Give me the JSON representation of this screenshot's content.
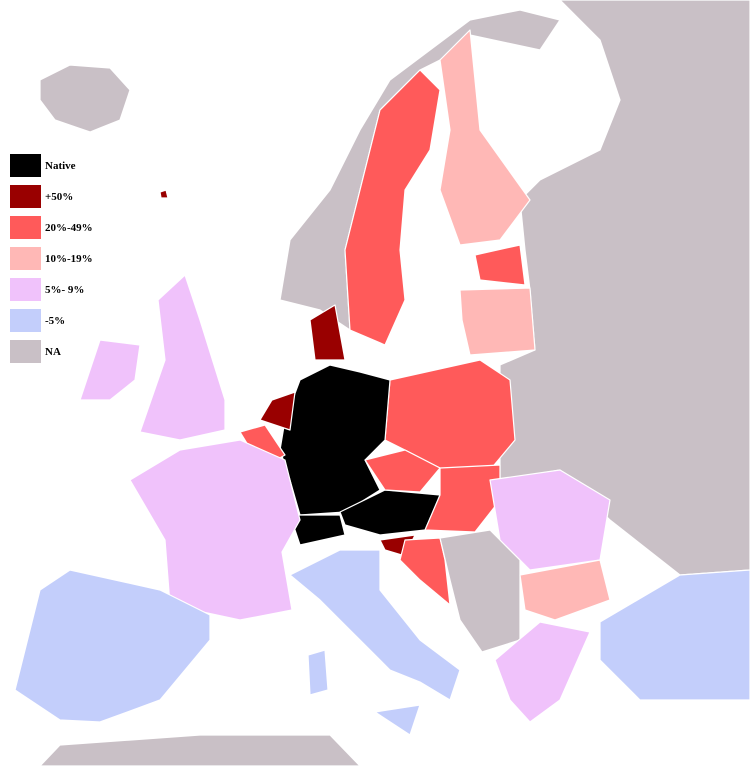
{
  "legend": {
    "items": [
      {
        "label": "Native",
        "color": "#000000"
      },
      {
        "label": "+50%",
        "color": "#990000"
      },
      {
        "label": "20%-49%",
        "color": "#ff5a5a"
      },
      {
        "label": "10%-19%",
        "color": "#ffb8b6"
      },
      {
        "label": "5%- 9%",
        "color": "#f0c2fb"
      },
      {
        "label": "-5%",
        "color": "#c3cefb"
      },
      {
        "label": "NA",
        "color": "#c9c0c6"
      }
    ]
  },
  "regions": [
    {
      "name": "Germany",
      "category": "Native"
    },
    {
      "name": "Austria",
      "category": "Native"
    },
    {
      "name": "Switzerland",
      "category": "Native"
    },
    {
      "name": "Liechtenstein",
      "category": "Native"
    },
    {
      "name": "Luxembourg",
      "category": "Native"
    },
    {
      "name": "Netherlands",
      "category": "+50%"
    },
    {
      "name": "Denmark",
      "category": "+50%"
    },
    {
      "name": "Slovenia",
      "category": "+50%"
    },
    {
      "name": "Faroe Islands",
      "category": "+50%"
    },
    {
      "name": "Sweden",
      "category": "20%-49%"
    },
    {
      "name": "Estonia",
      "category": "20%-49%"
    },
    {
      "name": "Poland",
      "category": "20%-49%"
    },
    {
      "name": "Czech Republic",
      "category": "20%-49%"
    },
    {
      "name": "Slovakia",
      "category": "20%-49%"
    },
    {
      "name": "Hungary",
      "category": "20%-49%"
    },
    {
      "name": "Croatia",
      "category": "20%-49%"
    },
    {
      "name": "Belgium",
      "category": "20%-49%"
    },
    {
      "name": "Finland",
      "category": "10%-19%"
    },
    {
      "name": "Latvia",
      "category": "10%-19%"
    },
    {
      "name": "Lithuania",
      "category": "10%-19%"
    },
    {
      "name": "Bulgaria",
      "category": "10%-19%"
    },
    {
      "name": "France",
      "category": "5%- 9%"
    },
    {
      "name": "United Kingdom",
      "category": "5%- 9%"
    },
    {
      "name": "Ireland",
      "category": "5%- 9%"
    },
    {
      "name": "Romania",
      "category": "5%- 9%"
    },
    {
      "name": "Greece",
      "category": "5%- 9%"
    },
    {
      "name": "Spain",
      "category": "-5%"
    },
    {
      "name": "Portugal",
      "category": "-5%"
    },
    {
      "name": "Italy",
      "category": "-5%"
    },
    {
      "name": "Turkey",
      "category": "-5%"
    }
  ]
}
